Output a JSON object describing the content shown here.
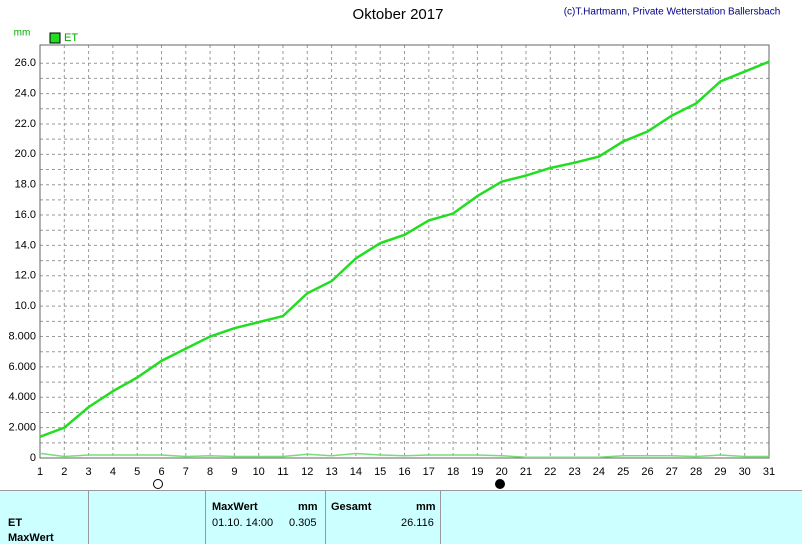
{
  "chart_data": {
    "type": "line",
    "title": "Oktober 2017",
    "subtitle": "(c)T.Hartmann, Private Wetterstation Ballersbach",
    "y_label": "mm",
    "x": [
      1,
      2,
      3,
      4,
      5,
      6,
      7,
      8,
      9,
      10,
      11,
      12,
      13,
      14,
      15,
      16,
      17,
      18,
      19,
      20,
      21,
      22,
      23,
      24,
      25,
      26,
      27,
      28,
      29,
      30,
      31
    ],
    "series": [
      {
        "name": "ET",
        "color": "#22dd22",
        "values": [
          1.4,
          2.0,
          3.35,
          4.4,
          5.3,
          6.4,
          7.2,
          8.0,
          8.55,
          8.95,
          9.35,
          10.85,
          11.65,
          13.15,
          14.15,
          14.7,
          15.65,
          16.1,
          17.25,
          18.2,
          18.6,
          19.1,
          19.45,
          19.85,
          20.85,
          21.5,
          22.55,
          23.35,
          24.8,
          25.45,
          26.1
        ]
      },
      {
        "color": "#77dd77",
        "values": [
          0.305,
          0.1,
          0.2,
          0.2,
          0.2,
          0.2,
          0.1,
          0.15,
          0.1,
          0.1,
          0.1,
          0.25,
          0.15,
          0.3,
          0.2,
          0.15,
          0.2,
          0.2,
          0.2,
          0.15,
          0.05,
          0.05,
          0.05,
          0.05,
          0.15,
          0.15,
          0.15,
          0.1,
          0.2,
          0.1,
          0.1
        ]
      }
    ],
    "xlim": [
      1,
      31
    ],
    "xticks": [
      1,
      2,
      3,
      4,
      5,
      6,
      7,
      8,
      9,
      10,
      11,
      12,
      13,
      14,
      15,
      16,
      17,
      18,
      19,
      20,
      21,
      22,
      23,
      24,
      25,
      26,
      27,
      28,
      29,
      30,
      31
    ],
    "ylim": [
      0,
      27.2
    ],
    "yticks": [
      0,
      {
        "value": 2,
        "label": "2.000"
      },
      {
        "value": 4,
        "label": "4.000"
      },
      {
        "value": 6,
        "label": "6.000"
      },
      {
        "value": 8,
        "label": "8.000"
      },
      {
        "value": 10,
        "label": "10.0"
      },
      {
        "value": 12,
        "label": "12.0"
      },
      {
        "value": 14,
        "label": "14.0"
      },
      {
        "value": 16,
        "label": "16.0"
      },
      {
        "value": 18,
        "label": "18.0"
      },
      {
        "value": 20,
        "label": "20.0"
      },
      {
        "value": 22,
        "label": "22.0"
      },
      {
        "value": 24,
        "label": "24.0"
      },
      {
        "value": 26,
        "label": "26.0"
      }
    ],
    "yminorticks": [
      1,
      3,
      5,
      7,
      9,
      11,
      13,
      15,
      17,
      19,
      21,
      23,
      25
    ],
    "grid": true
  },
  "table": {
    "header": [
      "MaxWert",
      "mm",
      "Gesamt",
      "mm"
    ],
    "rows": [
      [
        "ET",
        "01.10. 14:00",
        "0.305",
        "26.116"
      ],
      [
        "MaxWert"
      ]
    ]
  }
}
